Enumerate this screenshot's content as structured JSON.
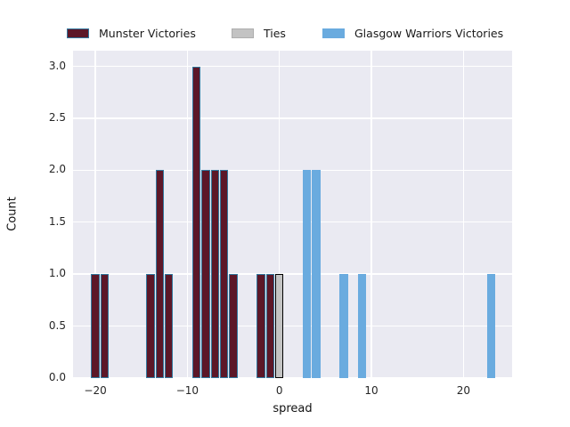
{
  "figure": {
    "background": "#ffffff",
    "plot_background": "#eaeaf2",
    "grid_color": "#ffffff"
  },
  "legend": {
    "items": [
      {
        "name": "munster-victories",
        "label": "Munster Victories",
        "color": "#5c1728",
        "edge": "#33789e"
      },
      {
        "name": "ties",
        "label": "Ties",
        "color": "#c3c3c3",
        "edge": "#aeaeae"
      },
      {
        "name": "glasgow-warriors-victories",
        "label": "Glasgow Warriors Victories",
        "color": "#6aabdf",
        "edge": "#6aabdf"
      }
    ]
  },
  "chart_data": {
    "type": "bar",
    "subtype": "histogram",
    "title": "",
    "xlabel": "spread",
    "ylabel": "Count",
    "xlim": [
      -22.43,
      25.29
    ],
    "ylim": [
      0,
      3.15
    ],
    "x_ticks": [
      -20,
      -10,
      0,
      10,
      20
    ],
    "x_tick_labels": [
      "−20",
      "−10",
      "0",
      "10",
      "20"
    ],
    "y_ticks": [
      0,
      0.5,
      1,
      1.5,
      2,
      2.5,
      3
    ],
    "y_tick_labels": [
      "0.0",
      "0.5",
      "1.0",
      "1.5",
      "2.0",
      "2.5",
      "3.0"
    ],
    "bin_width": 1,
    "bar_fill_fraction": 0.9,
    "grid": true,
    "legend_position": "top-center-horizontal",
    "series": [
      {
        "name": "Munster Victories",
        "color": "#5c1728",
        "edge_color": "#33789e",
        "bins": [
          {
            "x": -20,
            "count": 1
          },
          {
            "x": -19,
            "count": 1
          },
          {
            "x": -14,
            "count": 1
          },
          {
            "x": -13,
            "count": 2
          },
          {
            "x": -12,
            "count": 1
          },
          {
            "x": -9,
            "count": 3
          },
          {
            "x": -8,
            "count": 2
          },
          {
            "x": -7,
            "count": 2
          },
          {
            "x": -6,
            "count": 2
          },
          {
            "x": -5,
            "count": 1
          },
          {
            "x": -2,
            "count": 1
          },
          {
            "x": -1,
            "count": 1
          }
        ]
      },
      {
        "name": "Ties",
        "color": "#c3c3c3",
        "edge_color": "#000000",
        "bins": [
          {
            "x": 0,
            "count": 1
          }
        ]
      },
      {
        "name": "Glasgow Warriors Victories",
        "color": "#6aabdf",
        "edge_color": "#6aabdf",
        "bins": [
          {
            "x": 3,
            "count": 2
          },
          {
            "x": 4,
            "count": 2
          },
          {
            "x": 7,
            "count": 1
          },
          {
            "x": 9,
            "count": 1
          },
          {
            "x": 23,
            "count": 1
          }
        ]
      }
    ]
  }
}
